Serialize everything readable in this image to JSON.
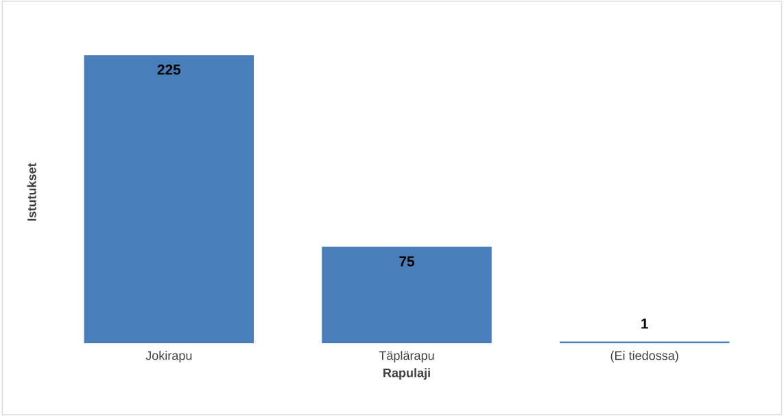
{
  "chart_data": {
    "type": "bar",
    "xlabel": "Rapulaji",
    "ylabel": "Istutukset",
    "categories": [
      "Jokirapu",
      "Täplärapu",
      "(Ei tiedossa)"
    ],
    "values": [
      225,
      75,
      1
    ],
    "color": "#4a7ebb",
    "data_labels": true,
    "grid": false,
    "legend": false
  }
}
